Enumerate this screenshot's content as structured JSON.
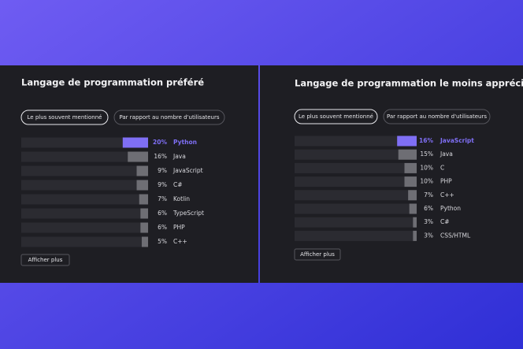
{
  "chart_data": [
    {
      "type": "bar",
      "title": "Langage de programmation préféré",
      "tabs": [
        "Le plus souvent mentionné",
        "Par rapport au nombre d'utilisateurs"
      ],
      "button": "Afficher plus",
      "categories": [
        "Python",
        "Java",
        "JavaScript",
        "C#",
        "Kotlin",
        "TypeScript",
        "PHP",
        "C++"
      ],
      "values": [
        20,
        16,
        9,
        9,
        7,
        6,
        6,
        5
      ],
      "value_labels": [
        "20%",
        "16%",
        "9%",
        "9%",
        "7%",
        "6%",
        "6%",
        "5%"
      ],
      "xlim": [
        0,
        100
      ],
      "color": "#6e6e74",
      "highlight_color": "#7f6ff5",
      "highlighted_category": "Python"
    },
    {
      "type": "bar",
      "title": "Langage de programmation le moins apprécié",
      "tabs": [
        "Le plus souvent mentionné",
        "Par rapport au nombre d'utilisateurs"
      ],
      "button": "Afficher plus",
      "categories": [
        "JavaScript",
        "Java",
        "C",
        "PHP",
        "C++",
        "Python",
        "C#",
        "CSS/HTML"
      ],
      "values": [
        16,
        15,
        10,
        10,
        7,
        6,
        3,
        3
      ],
      "value_labels": [
        "16%",
        "15%",
        "10%",
        "10%",
        "7%",
        "6%",
        "3%",
        "3%"
      ],
      "xlim": [
        0,
        100
      ],
      "color": "#6e6e74",
      "highlight_color": "#7f6ff5",
      "highlighted_category": "JavaScript"
    }
  ]
}
